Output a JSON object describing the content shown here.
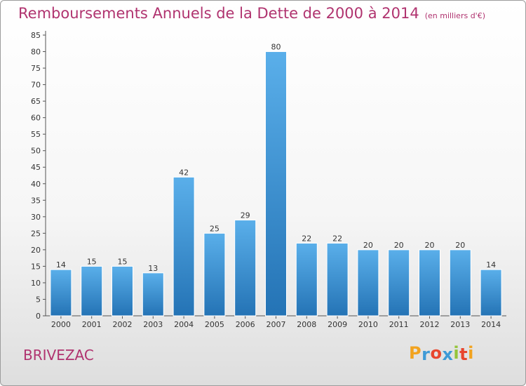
{
  "title": "Remboursements Annuels de la Dette de 2000 à 2014",
  "unit": "(en milliers d'€)",
  "commune": "BRIVEZAC",
  "logo": {
    "letters": [
      "P",
      "r",
      "o",
      "x",
      "i",
      "t",
      "i"
    ],
    "colors": [
      "#f2a31f",
      "#3e9ad6",
      "#e8462e",
      "#3e9ad6",
      "#94c43a",
      "#e8462e",
      "#f2a31f"
    ]
  },
  "colors": {
    "title": "#b0336f",
    "bar_top": "#5aafea",
    "bar_bottom": "#2473b5"
  },
  "chart_data": {
    "type": "bar",
    "categories": [
      "2000",
      "2001",
      "2002",
      "2003",
      "2004",
      "2005",
      "2006",
      "2007",
      "2008",
      "2009",
      "2010",
      "2011",
      "2012",
      "2013",
      "2014"
    ],
    "values": [
      14,
      15,
      15,
      13,
      42,
      25,
      29,
      80,
      22,
      22,
      20,
      20,
      20,
      20,
      14
    ],
    "ylim": [
      0,
      85
    ],
    "yticks": [
      0,
      5,
      10,
      15,
      20,
      25,
      30,
      35,
      40,
      45,
      50,
      55,
      60,
      65,
      70,
      75,
      80,
      85
    ],
    "grid": false,
    "legend": "none"
  }
}
